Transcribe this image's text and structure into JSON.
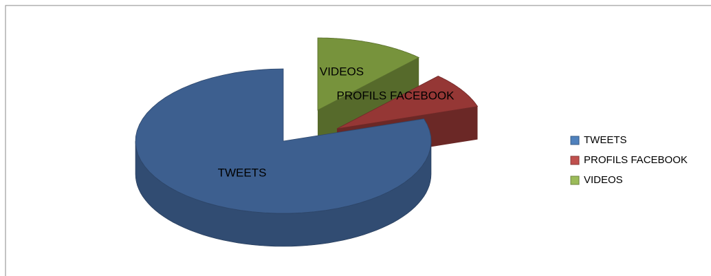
{
  "chart_data": {
    "type": "pie",
    "categories": [
      "TWEETS",
      "PROFILS FACEBOOK",
      "VIDEOS"
    ],
    "values": [
      80,
      8,
      12
    ],
    "colors": [
      "#3d5f8f",
      "#953735",
      "#77933c"
    ],
    "legend_colors": [
      "#4f81bd",
      "#c0504d",
      "#9bbb59"
    ],
    "legend": "right"
  }
}
